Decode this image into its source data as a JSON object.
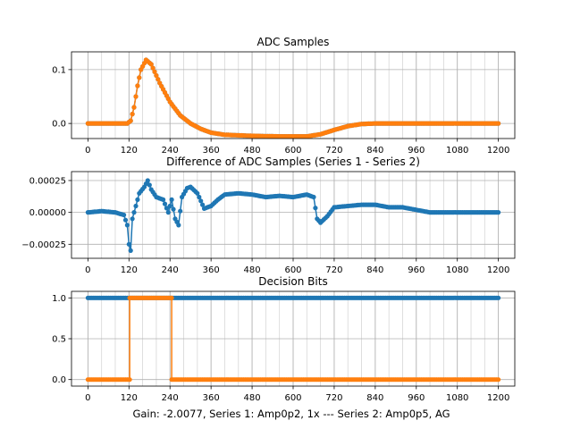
{
  "figure": {
    "xlabel": "Gain: -2.0077, Series 1: Amp0p2, 1x --- Series 2: Amp0p5, AG",
    "colors": {
      "series1": "#1f77b4",
      "series2": "#ff7f0e"
    }
  },
  "chart_data": [
    {
      "type": "scatter",
      "title": "ADC Samples",
      "xlim": [
        -48,
        1248
      ],
      "ylim": [
        -0.028,
        0.133
      ],
      "xticks": [
        0,
        120,
        240,
        360,
        480,
        600,
        720,
        840,
        960,
        1080,
        1200
      ],
      "yticks": [
        0.0,
        0.1
      ],
      "ytick_labels": [
        "0.0",
        "0.1"
      ],
      "series": [
        {
          "name": "Series 1",
          "color": "#1f77b4",
          "points": [
            [
              0,
              0
            ],
            [
              115,
              0
            ],
            [
              125,
              0.005
            ],
            [
              135,
              0.03
            ],
            [
              145,
              0.07
            ],
            [
              155,
              0.1
            ],
            [
              170,
              0.118
            ],
            [
              185,
              0.11
            ],
            [
              210,
              0.075
            ],
            [
              240,
              0.04
            ],
            [
              270,
              0.015
            ],
            [
              300,
              0.0
            ],
            [
              330,
              -0.01
            ],
            [
              360,
              -0.017
            ],
            [
              400,
              -0.021
            ],
            [
              480,
              -0.023
            ],
            [
              560,
              -0.024
            ],
            [
              640,
              -0.024
            ],
            [
              680,
              -0.02
            ],
            [
              720,
              -0.012
            ],
            [
              760,
              -0.005
            ],
            [
              800,
              -0.001
            ],
            [
              840,
              0.0
            ],
            [
              1200,
              0.0
            ]
          ]
        },
        {
          "name": "Series 2",
          "color": "#ff7f0e",
          "points": [
            [
              0,
              0
            ],
            [
              115,
              0
            ],
            [
              125,
              0.005
            ],
            [
              135,
              0.03
            ],
            [
              145,
              0.07
            ],
            [
              155,
              0.1
            ],
            [
              170,
              0.118
            ],
            [
              185,
              0.11
            ],
            [
              210,
              0.075
            ],
            [
              240,
              0.04
            ],
            [
              270,
              0.015
            ],
            [
              300,
              0.0
            ],
            [
              330,
              -0.01
            ],
            [
              360,
              -0.017
            ],
            [
              400,
              -0.021
            ],
            [
              480,
              -0.023
            ],
            [
              560,
              -0.024
            ],
            [
              640,
              -0.024
            ],
            [
              680,
              -0.02
            ],
            [
              720,
              -0.012
            ],
            [
              760,
              -0.005
            ],
            [
              800,
              -0.001
            ],
            [
              840,
              0.0
            ],
            [
              1200,
              0.0
            ]
          ]
        }
      ]
    },
    {
      "type": "scatter",
      "title": "Difference of ADC Samples (Series 1 - Series 2)",
      "xlim": [
        -48,
        1248
      ],
      "ylim": [
        -0.00036,
        0.00032
      ],
      "xticks": [
        0,
        120,
        240,
        360,
        480,
        600,
        720,
        840,
        960,
        1080,
        1200
      ],
      "yticks": [
        -0.00025,
        0.0,
        0.00025
      ],
      "ytick_labels": [
        "−0.00025",
        "0.00000",
        "0.00025"
      ],
      "series": [
        {
          "name": "Series 1 - Series 2",
          "color": "#1f77b4",
          "points": [
            [
              0,
              0
            ],
            [
              40,
              1e-05
            ],
            [
              80,
              0
            ],
            [
              105,
              -2e-05
            ],
            [
              115,
              -0.0001
            ],
            [
              120,
              -0.00025
            ],
            [
              125,
              -0.0003
            ],
            [
              130,
              -5e-05
            ],
            [
              140,
              5e-05
            ],
            [
              150,
              0.00015
            ],
            [
              165,
              0.0002
            ],
            [
              175,
              0.00025
            ],
            [
              185,
              0.00018
            ],
            [
              200,
              0.00012
            ],
            [
              220,
              0.0001
            ],
            [
              235,
              0.0
            ],
            [
              245,
              0.0001
            ],
            [
              255,
              -5e-05
            ],
            [
              265,
              -0.0001
            ],
            [
              275,
              0.00012
            ],
            [
              290,
              0.00019
            ],
            [
              300,
              0.0002
            ],
            [
              320,
              0.00015
            ],
            [
              340,
              3e-05
            ],
            [
              360,
              5e-05
            ],
            [
              380,
              0.0001
            ],
            [
              400,
              0.00014
            ],
            [
              440,
              0.00015
            ],
            [
              480,
              0.00014
            ],
            [
              520,
              0.00012
            ],
            [
              560,
              0.00013
            ],
            [
              600,
              0.00012
            ],
            [
              640,
              0.00014
            ],
            [
              660,
              0.00012
            ],
            [
              670,
              -5e-05
            ],
            [
              680,
              -8e-05
            ],
            [
              700,
              -3e-05
            ],
            [
              720,
              4e-05
            ],
            [
              760,
              5e-05
            ],
            [
              800,
              6e-05
            ],
            [
              840,
              6e-05
            ],
            [
              880,
              4e-05
            ],
            [
              920,
              4e-05
            ],
            [
              960,
              2e-05
            ],
            [
              1000,
              0.0
            ],
            [
              1040,
              0.0
            ],
            [
              1080,
              0.0
            ],
            [
              1120,
              0.0
            ],
            [
              1160,
              0.0
            ],
            [
              1200,
              0.0
            ]
          ]
        }
      ]
    },
    {
      "type": "scatter",
      "title": "Decision Bits",
      "xlim": [
        -48,
        1248
      ],
      "ylim": [
        -0.08,
        1.08
      ],
      "xticks": [
        0,
        120,
        240,
        360,
        480,
        600,
        720,
        840,
        960,
        1080,
        1200
      ],
      "yticks": [
        0.0,
        0.5,
        1.0
      ],
      "ytick_labels": [
        "0.0",
        "0.5",
        "1.0"
      ],
      "series": [
        {
          "name": "Series 1",
          "color": "#1f77b4",
          "points": [
            [
              0,
              1
            ],
            [
              1200,
              1
            ]
          ]
        },
        {
          "name": "Series 2",
          "color": "#ff7f0e",
          "points": [
            [
              0,
              0
            ],
            [
              122,
              0
            ],
            [
              122,
              1
            ],
            [
              245,
              1
            ],
            [
              245,
              0
            ],
            [
              1200,
              0
            ]
          ]
        }
      ]
    }
  ]
}
